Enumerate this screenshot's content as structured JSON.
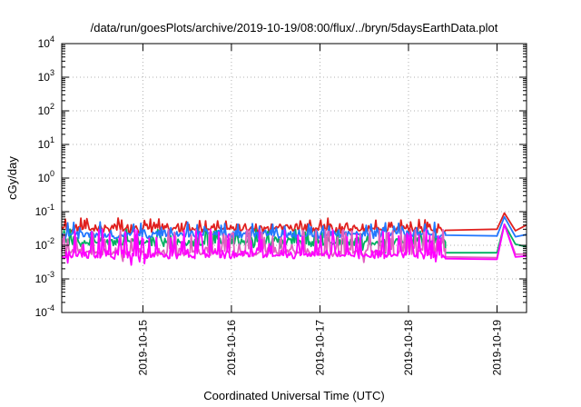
{
  "chart_data": {
    "type": "line",
    "title": "/data/run/goesPlots/archive/2019-10-19/08:00/flux/../bryn/5daysEarthData.plot",
    "xlabel": "Coordinated Universal Time (UTC)",
    "ylabel": "cGy/day",
    "yscale": "log",
    "ylim": [
      0.0001,
      10000
    ],
    "y_ticks": [
      {
        "base": "10",
        "exp": "-4",
        "value": 0.0001
      },
      {
        "base": "10",
        "exp": "-3",
        "value": 0.001
      },
      {
        "base": "10",
        "exp": "-2",
        "value": 0.01
      },
      {
        "base": "10",
        "exp": "-1",
        "value": 0.1
      },
      {
        "base": "10",
        "exp": "0",
        "value": 1
      },
      {
        "base": "10",
        "exp": "1",
        "value": 10
      },
      {
        "base": "10",
        "exp": "2",
        "value": 100
      },
      {
        "base": "10",
        "exp": "3",
        "value": 1000
      },
      {
        "base": "10",
        "exp": "4",
        "value": 10000
      }
    ],
    "xlim": [
      "2019-10-14T02:00",
      "2019-10-19T08:00"
    ],
    "x_ticks": [
      "2019-10-15",
      "2019-10-16",
      "2019-10-17",
      "2019-10-18",
      "2019-10-19"
    ],
    "grid": true,
    "series": [
      {
        "color": "#e0201e",
        "base": 0.03,
        "min": 0.022,
        "max": 0.065,
        "x": [
          "2019-10-14T02:00",
          "2019-10-14T12:00",
          "2019-10-15T00:00",
          "2019-10-15T12:00",
          "2019-10-16T00:00",
          "2019-10-16T12:00",
          "2019-10-17T00:00",
          "2019-10-17T12:00",
          "2019-10-18T00:00",
          "2019-10-18T10:00",
          "2019-10-19T00:00",
          "2019-10-19T02:00",
          "2019-10-19T08:00"
        ],
        "y": [
          0.032,
          0.033,
          0.034,
          0.032,
          0.033,
          0.035,
          0.033,
          0.032,
          0.034,
          0.03,
          0.028,
          0.03,
          0.04
        ]
      },
      {
        "color": "#00b060",
        "base": 0.012,
        "min": 0.006,
        "max": 0.03,
        "x": [
          "2019-10-14T02:00",
          "2019-10-15T00:00",
          "2019-10-16T00:00",
          "2019-10-17T00:00",
          "2019-10-18T00:00",
          "2019-10-18T10:00",
          "2019-10-19T00:00",
          "2019-10-19T08:00"
        ],
        "y": [
          0.013,
          0.012,
          0.012,
          0.011,
          0.012,
          0.006,
          0.006,
          0.009
        ]
      },
      {
        "color": "#2277ff",
        "base": 0.02,
        "min": 0.015,
        "max": 0.05,
        "x": [
          "2019-10-14T02:00",
          "2019-10-15T00:00",
          "2019-10-16T00:00",
          "2019-10-17T00:00",
          "2019-10-18T00:00",
          "2019-10-18T10:00",
          "2019-10-19T00:00",
          "2019-10-19T08:00"
        ],
        "y": [
          0.022,
          0.023,
          0.022,
          0.022,
          0.023,
          0.02,
          0.019,
          0.021
        ]
      },
      {
        "color": "#e060c0",
        "base": 0.006,
        "min": 0.003,
        "max": 0.03,
        "x": [
          "2019-10-14T02:00",
          "2019-10-15T00:00",
          "2019-10-16T00:00",
          "2019-10-17T00:00",
          "2019-10-18T00:00",
          "2019-10-18T10:00",
          "2019-10-19T00:00",
          "2019-10-19T08:00"
        ],
        "y": [
          0.006,
          0.0055,
          0.006,
          0.0055,
          0.006,
          0.0045,
          0.0043,
          0.0055
        ]
      },
      {
        "color": "#ff00ff",
        "base": 0.005,
        "min": 0.0025,
        "max": 0.03,
        "x": [
          "2019-10-14T02:00",
          "2019-10-15T00:00",
          "2019-10-16T00:00",
          "2019-10-17T00:00",
          "2019-10-18T00:00",
          "2019-10-18T10:00",
          "2019-10-19T00:00",
          "2019-10-19T08:00"
        ],
        "y": [
          0.005,
          0.0048,
          0.005,
          0.0048,
          0.005,
          0.004,
          0.0038,
          0.0048
        ]
      }
    ]
  }
}
